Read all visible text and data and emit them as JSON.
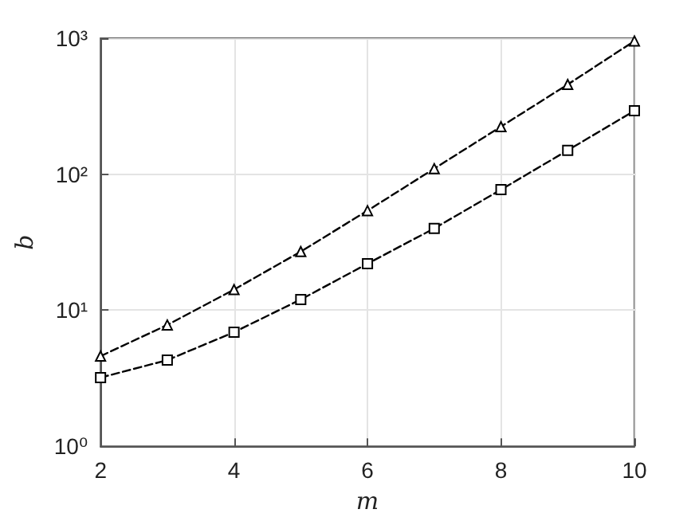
{
  "chart_data": {
    "type": "line",
    "xlabel": "m",
    "ylabel": "b",
    "x": [
      2,
      3,
      4,
      5,
      6,
      7,
      8,
      9,
      10
    ],
    "series": [
      {
        "color": "#000000",
        "marker": "triangle",
        "values": [
          4.6,
          7.8,
          14.2,
          27,
          54,
          110,
          224,
          457,
          955
        ]
      },
      {
        "color": "#000000",
        "marker": "square",
        "values": [
          3.2,
          4.3,
          6.9,
          12,
          22,
          40,
          77,
          150,
          293
        ]
      }
    ],
    "log": "y",
    "line_style": "dashed",
    "grid": true,
    "xlim": [
      2,
      10
    ],
    "xticks": [
      2,
      4,
      6,
      8,
      10
    ],
    "ylim": [
      1,
      1000
    ],
    "yticks": [
      {
        "value": 1,
        "label": "10⁰"
      },
      {
        "value": 10,
        "label": "10¹"
      },
      {
        "value": 100,
        "label": "10²"
      },
      {
        "value": 1000,
        "label": "10³"
      }
    ]
  }
}
